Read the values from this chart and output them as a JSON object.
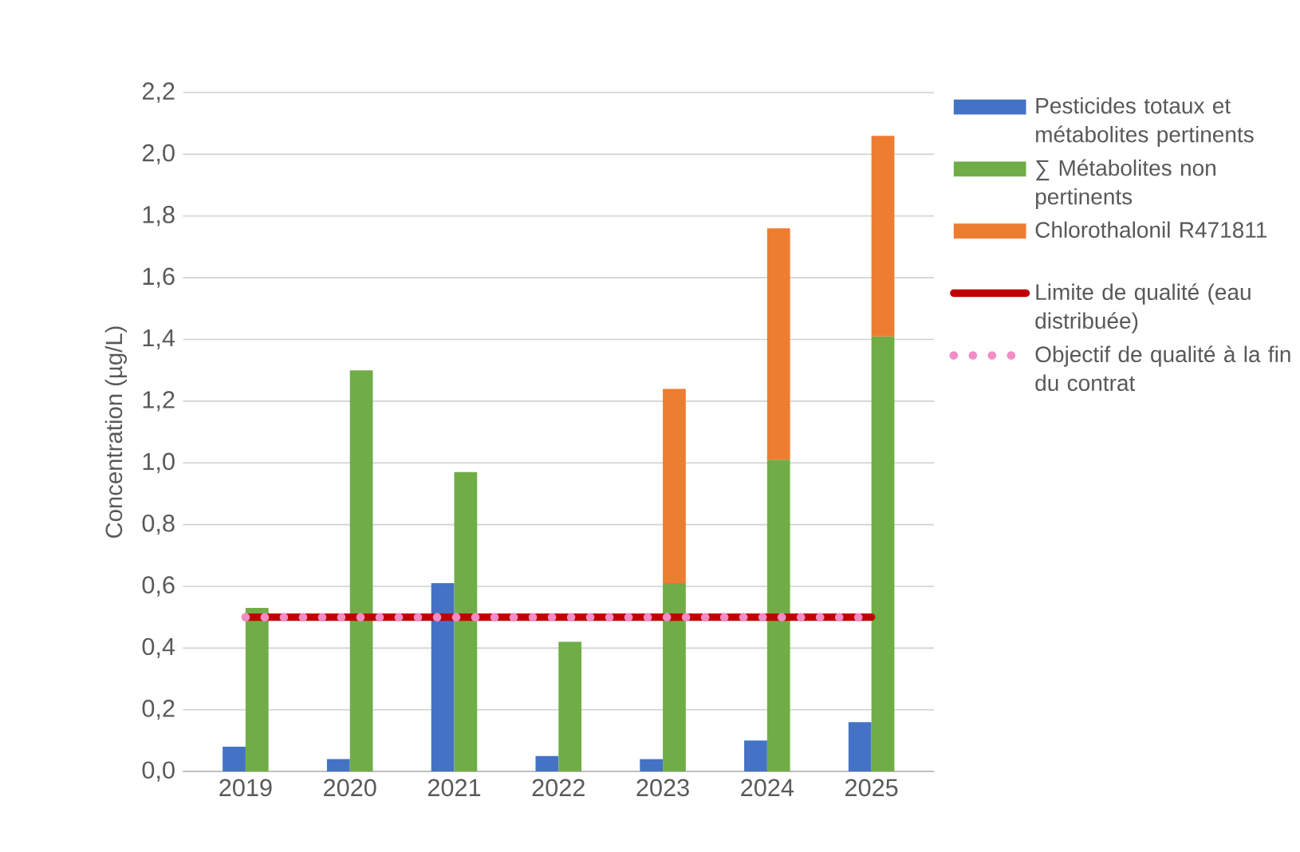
{
  "chart_data": {
    "type": "bar",
    "ylabel": "Concentration (µg/L)",
    "categories": [
      "2019",
      "2020",
      "2021",
      "2022",
      "2023",
      "2024",
      "2025"
    ],
    "series": [
      {
        "name": "Pesticides totaux et métabolites pertinents",
        "color": "#4472c4",
        "values": [
          0.08,
          0.04,
          0.61,
          0.05,
          0.04,
          0.1,
          0.16
        ]
      },
      {
        "name": "∑ Métabolites non pertinents",
        "color": "#70ad47",
        "values": [
          0.53,
          1.3,
          0.97,
          0.42,
          0.61,
          1.01,
          1.41
        ]
      },
      {
        "name": "Chlorothalonil R471811",
        "color": "#ed7d31",
        "values": [
          null,
          null,
          null,
          null,
          0.63,
          0.75,
          0.65
        ],
        "base": [
          null,
          null,
          null,
          null,
          0.61,
          1.01,
          1.41
        ]
      }
    ],
    "ylim": [
      0,
      2.2
    ],
    "yticks": [
      {
        "value": 0,
        "label": "0,0"
      },
      {
        "value": 0.2,
        "label": "0,2"
      },
      {
        "value": 0.4,
        "label": "0,4"
      },
      {
        "value": 0.6,
        "label": "0,6"
      },
      {
        "value": 0.8,
        "label": "0,8"
      },
      {
        "value": 1.0,
        "label": "1,0"
      },
      {
        "value": 1.2,
        "label": "1,2"
      },
      {
        "value": 1.4,
        "label": "1,4"
      },
      {
        "value": 1.6,
        "label": "1,6"
      },
      {
        "value": 1.8,
        "label": "1,8"
      },
      {
        "value": 2.0,
        "label": "2,0"
      },
      {
        "value": 2.2,
        "label": "2,2"
      }
    ],
    "ref_lines": [
      {
        "axis": "y",
        "value": 0.5,
        "label": "Limite de qualité (eau distribuée)",
        "color": "#c00000",
        "line_style": "solid"
      },
      {
        "axis": "y",
        "value": 0.5,
        "label": "Objectif de qualité à la fin du contrat",
        "color": "#f28dc6",
        "line_style": "dotted"
      }
    ],
    "grid": "y",
    "legend": "right"
  }
}
